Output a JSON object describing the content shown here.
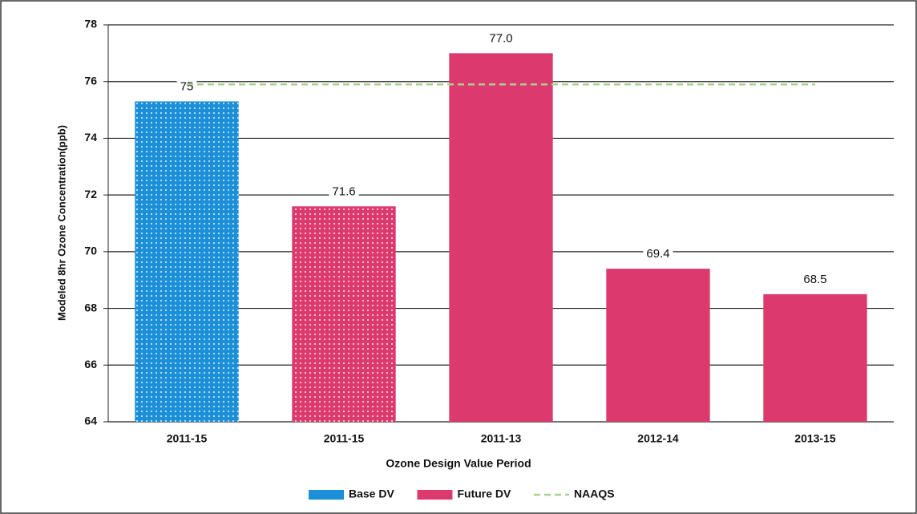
{
  "chart_data": {
    "type": "bar",
    "x_label": "Ozone Design Value Period",
    "y_label": "Modeled 8hr Ozone Concentration(ppb)",
    "categories": [
      "2011-15",
      "2011-15",
      "2011-13",
      "2012-14",
      "2013-15"
    ],
    "series": [
      {
        "name": "Base DV",
        "color": "#1b8fd8",
        "values": [
          75.3,
          null,
          null,
          null,
          null
        ],
        "value_labels": [
          "75",
          null,
          null,
          null,
          null
        ]
      },
      {
        "name": "Future DV",
        "color": "#dc3a6e",
        "values": [
          null,
          71.6,
          77.0,
          69.4,
          68.5
        ],
        "value_labels": [
          null,
          "71.6",
          "77.0",
          "69.4",
          "68.5"
        ]
      },
      {
        "name": "NAAQS",
        "type": "line",
        "dashed": true,
        "color": "#a9d18e",
        "values": [
          75.9,
          75.9,
          75.9,
          75.9,
          75.9
        ]
      }
    ],
    "dotted": [
      true,
      true,
      false,
      false,
      false
    ],
    "ylim": [
      64,
      78
    ],
    "yticks": [
      64,
      66,
      68,
      70,
      72,
      74,
      76,
      78
    ],
    "grid": true,
    "legend": "bottom"
  }
}
